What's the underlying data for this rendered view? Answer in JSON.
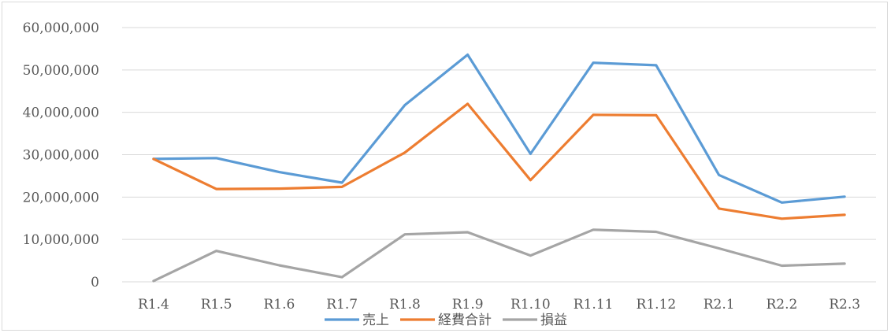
{
  "chart_data": {
    "type": "line",
    "categories": [
      "R1.4",
      "R1.5",
      "R1.6",
      "R1.7",
      "R1.8",
      "R1.9",
      "R1.10",
      "R1.11",
      "R1.12",
      "R2.1",
      "R2.2",
      "R2.3"
    ],
    "ylim": [
      0,
      60000000
    ],
    "yticks": [
      0,
      10000000,
      20000000,
      30000000,
      40000000,
      50000000,
      60000000
    ],
    "ytick_labels": [
      "0",
      "10,000,000",
      "20,000,000",
      "30,000,000",
      "40,000,000",
      "50,000,000",
      "60,000,000"
    ],
    "grid": true,
    "legend_position": "bottom",
    "series": [
      {
        "name": "売上",
        "color": "#5b9bd5",
        "values": [
          29000000,
          29200000,
          25900000,
          23400000,
          41700000,
          53600000,
          30200000,
          51700000,
          51100000,
          25200000,
          18700000,
          20100000
        ]
      },
      {
        "name": "経費合計",
        "color": "#ed7d31",
        "values": [
          29000000,
          21900000,
          22000000,
          22400000,
          30500000,
          42000000,
          24000000,
          39400000,
          39300000,
          17300000,
          14900000,
          15800000
        ]
      },
      {
        "name": "損益",
        "color": "#a5a5a5",
        "values": [
          200000,
          7300000,
          3900000,
          1100000,
          11200000,
          11700000,
          6200000,
          12300000,
          11800000,
          7900000,
          3800000,
          4300000
        ]
      }
    ]
  }
}
